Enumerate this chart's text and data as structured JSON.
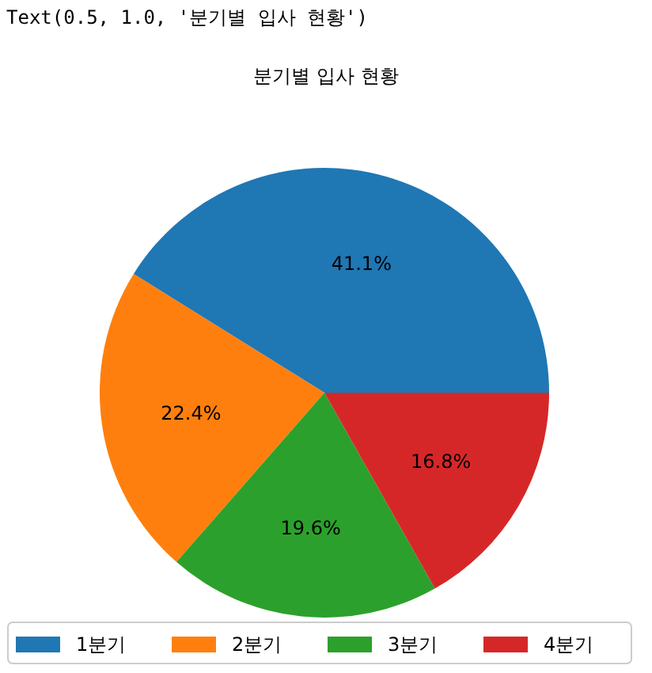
{
  "chart_data": {
    "type": "pie",
    "title": "분기별 입사 현황",
    "annotations": [
      "Text(0.5, 1.0, '분기별 입사 현황')"
    ],
    "categories": [
      "1분기",
      "2분기",
      "3분기",
      "4분기"
    ],
    "values": [
      41.1,
      22.4,
      19.6,
      16.8
    ],
    "colors": [
      "#1f77b4",
      "#ff7f0e",
      "#2ca02c",
      "#d62728"
    ],
    "value_labels": [
      "41.1%",
      "22.4%",
      "19.6%",
      "16.8%"
    ],
    "legend": "bottom"
  }
}
